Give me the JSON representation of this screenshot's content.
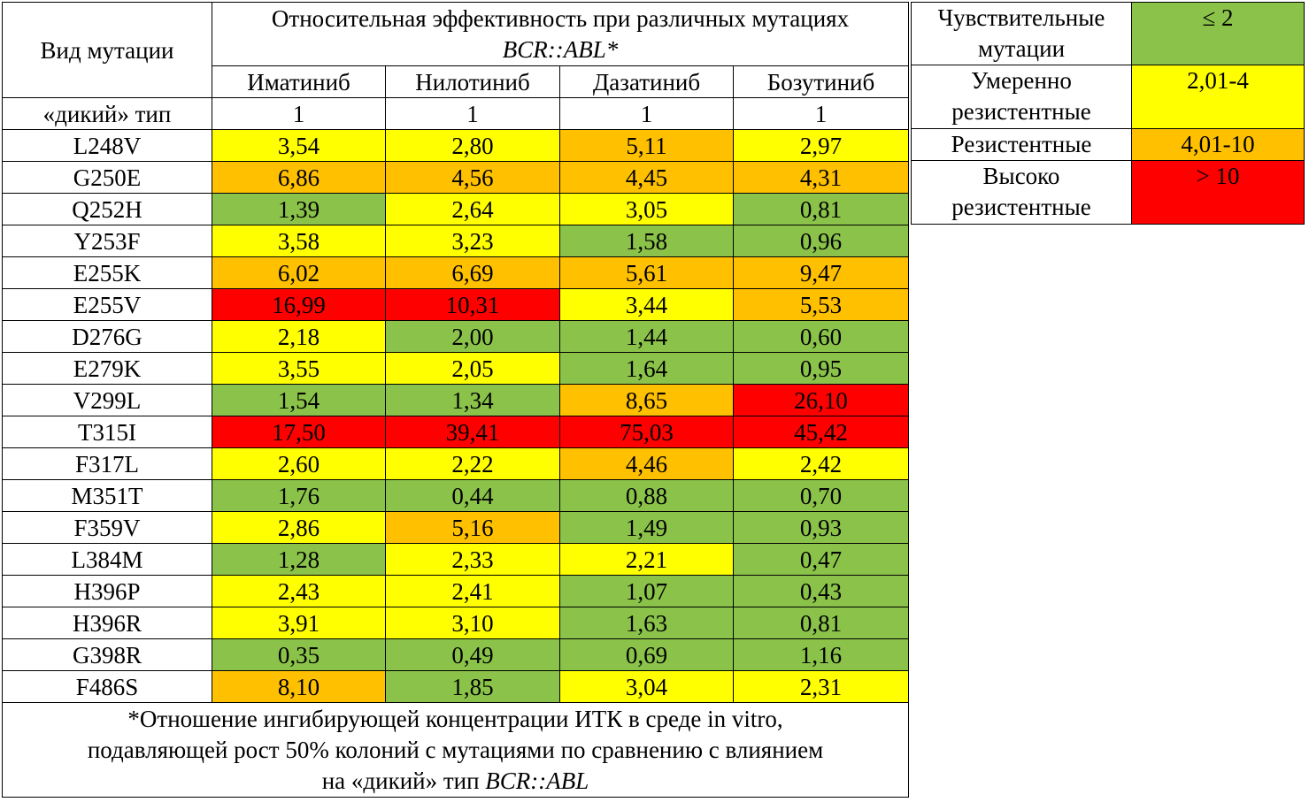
{
  "table": {
    "header_mutation": "Вид мутации",
    "header_title_line1": "Относительная эффективность при различных мутациях",
    "header_title_line2": "BCR::ABL*",
    "drugs": [
      "Иматиниб",
      "Нилотиниб",
      "Дазатиниб",
      "Бозутиниб"
    ],
    "wild_type": {
      "label": "«дикий» тип",
      "values": [
        "1",
        "1",
        "1",
        "1"
      ]
    },
    "rows": [
      {
        "name": "L248V",
        "values": [
          "3,54",
          "2,80",
          "5,11",
          "2,97"
        ]
      },
      {
        "name": "G250E",
        "values": [
          "6,86",
          "4,56",
          "4,45",
          "4,31"
        ]
      },
      {
        "name": "Q252H",
        "values": [
          "1,39",
          "2,64",
          "3,05",
          "0,81"
        ]
      },
      {
        "name": "Y253F",
        "values": [
          "3,58",
          "3,23",
          "1,58",
          "0,96"
        ]
      },
      {
        "name": "E255K",
        "values": [
          "6,02",
          "6,69",
          "5,61",
          "9,47"
        ]
      },
      {
        "name": "E255V",
        "values": [
          "16,99",
          "10,31",
          "3,44",
          "5,53"
        ]
      },
      {
        "name": "D276G",
        "values": [
          "2,18",
          "2,00",
          "1,44",
          "0,60"
        ]
      },
      {
        "name": "E279K",
        "values": [
          "3,55",
          "2,05",
          "1,64",
          "0,95"
        ]
      },
      {
        "name": "V299L",
        "values": [
          "1,54",
          "1,34",
          "8,65",
          "26,10"
        ]
      },
      {
        "name": "T315I",
        "values": [
          "17,50",
          "39,41",
          "75,03",
          "45,42"
        ]
      },
      {
        "name": "F317L",
        "values": [
          "2,60",
          "2,22",
          "4,46",
          "2,42"
        ]
      },
      {
        "name": "M351T",
        "values": [
          "1,76",
          "0,44",
          "0,88",
          "0,70"
        ]
      },
      {
        "name": "F359V",
        "values": [
          "2,86",
          "5,16",
          "1,49",
          "0,93"
        ]
      },
      {
        "name": "L384M",
        "values": [
          "1,28",
          "2,33",
          "2,21",
          "0,47"
        ]
      },
      {
        "name": "H396P",
        "values": [
          "2,43",
          "2,41",
          "1,07",
          "0,43"
        ]
      },
      {
        "name": "H396R",
        "values": [
          "3,91",
          "3,10",
          "1,63",
          "0,81"
        ]
      },
      {
        "name": "G398R",
        "values": [
          "0,35",
          "0,49",
          "0,69",
          "1,16"
        ]
      },
      {
        "name": "F486S",
        "values": [
          "8,10",
          "1,85",
          "3,04",
          "2,31"
        ]
      }
    ],
    "footnote_line1": "*Отношение ингибирующей концентрации ИТК в среде in vitro,",
    "footnote_line2": "подавляющей рост 50% колоний с мутациями по сравнению с влиянием",
    "footnote_line3_prefix": "на «дикий» тип ",
    "footnote_line3_italic": "BCR::ABL"
  },
  "legend": [
    {
      "label_line1": "Чувствительные",
      "label_line2": "мутации",
      "range": "≤ 2",
      "color": "#8bc34a"
    },
    {
      "label_line1": "Умеренно",
      "label_line2": "резистентные",
      "range": "2,01-4",
      "color": "#ffff00"
    },
    {
      "label_line1": "Резистентные",
      "label_line2": "",
      "range": "4,01-10",
      "color": "#ffc000"
    },
    {
      "label_line1": "Высоко",
      "label_line2": "резистентные",
      "range": "> 10",
      "color": "#ff0000"
    }
  ]
}
